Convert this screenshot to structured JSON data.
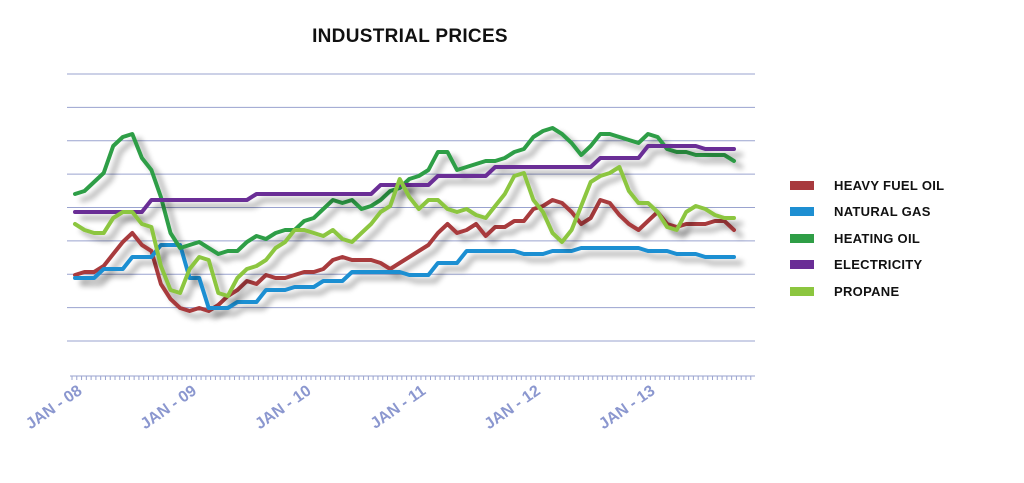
{
  "chart_data": {
    "type": "line",
    "title": "INDUSTRIAL PRICES",
    "xlabel": "",
    "ylabel": "",
    "x_tick_labels": [
      "JAN - 08",
      "JAN - 09",
      "JAN - 10",
      "JAN - 11",
      "JAN - 12",
      "JAN - 13"
    ],
    "x_start_month": "2008-01",
    "ylim": [
      0,
      10
    ],
    "y_gridlines": 9,
    "grid": true,
    "legend_position": "right",
    "series": [
      {
        "name": "HEAVY FUEL OIL",
        "color": "#a83a3e",
        "values": [
          3.3,
          3.4,
          3.4,
          3.6,
          4.0,
          4.4,
          4.7,
          4.3,
          4.1,
          3.0,
          2.5,
          2.2,
          2.1,
          2.2,
          2.1,
          2.3,
          2.6,
          2.8,
          3.1,
          3.0,
          3.3,
          3.2,
          3.2,
          3.3,
          3.4,
          3.4,
          3.5,
          3.8,
          3.9,
          3.8,
          3.8,
          3.8,
          3.7,
          3.5,
          3.7,
          3.9,
          4.1,
          4.3,
          4.7,
          5.0,
          4.7,
          4.8,
          5.0,
          4.6,
          4.9,
          4.9,
          5.1,
          5.1,
          5.5,
          5.6,
          5.8,
          5.7,
          5.4,
          5.0,
          5.2,
          5.8,
          5.7,
          5.3,
          5.0,
          4.8,
          5.1,
          5.4,
          5.0,
          4.9,
          5.0,
          5.0,
          5.0,
          5.1,
          5.1,
          4.8
        ]
      },
      {
        "name": "NATURAL GAS",
        "color": "#1e8fd2",
        "values": [
          3.2,
          3.2,
          3.2,
          3.5,
          3.5,
          3.5,
          3.9,
          3.9,
          3.9,
          4.3,
          4.3,
          4.3,
          3.2,
          3.2,
          2.2,
          2.2,
          2.2,
          2.4,
          2.4,
          2.4,
          2.8,
          2.8,
          2.8,
          2.9,
          2.9,
          2.9,
          3.1,
          3.1,
          3.1,
          3.4,
          3.4,
          3.4,
          3.4,
          3.4,
          3.4,
          3.3,
          3.3,
          3.3,
          3.7,
          3.7,
          3.7,
          4.1,
          4.1,
          4.1,
          4.1,
          4.1,
          4.1,
          4.0,
          4.0,
          4.0,
          4.1,
          4.1,
          4.1,
          4.2,
          4.2,
          4.2,
          4.2,
          4.2,
          4.2,
          4.2,
          4.1,
          4.1,
          4.1,
          4.0,
          4.0,
          4.0,
          3.9,
          3.9,
          3.9,
          3.9
        ]
      },
      {
        "name": "HEATING OIL",
        "color": "#2f9e46",
        "values": [
          6.0,
          6.1,
          6.4,
          6.7,
          7.6,
          7.9,
          8.0,
          7.2,
          6.8,
          5.9,
          4.7,
          4.2,
          4.3,
          4.4,
          4.2,
          4.0,
          4.1,
          4.1,
          4.4,
          4.6,
          4.5,
          4.7,
          4.8,
          4.8,
          5.1,
          5.2,
          5.5,
          5.8,
          5.7,
          5.8,
          5.5,
          5.6,
          5.8,
          6.1,
          6.2,
          6.5,
          6.6,
          6.8,
          7.4,
          7.4,
          6.8,
          6.9,
          7.0,
          7.1,
          7.1,
          7.2,
          7.4,
          7.5,
          7.9,
          8.1,
          8.2,
          8.0,
          7.7,
          7.3,
          7.6,
          8.0,
          8.0,
          7.9,
          7.8,
          7.7,
          8.0,
          7.9,
          7.5,
          7.4,
          7.4,
          7.3,
          7.3,
          7.3,
          7.3,
          7.1
        ]
      },
      {
        "name": "ELECTRICITY",
        "color": "#6a2d96",
        "values": [
          5.4,
          5.4,
          5.4,
          5.4,
          5.4,
          5.4,
          5.4,
          5.4,
          5.8,
          5.8,
          5.8,
          5.8,
          5.8,
          5.8,
          5.8,
          5.8,
          5.8,
          5.8,
          5.8,
          6.0,
          6.0,
          6.0,
          6.0,
          6.0,
          6.0,
          6.0,
          6.0,
          6.0,
          6.0,
          6.0,
          6.0,
          6.0,
          6.3,
          6.3,
          6.3,
          6.3,
          6.3,
          6.3,
          6.6,
          6.6,
          6.6,
          6.6,
          6.6,
          6.6,
          6.9,
          6.9,
          6.9,
          6.9,
          6.9,
          6.9,
          6.9,
          6.9,
          6.9,
          6.9,
          6.9,
          7.2,
          7.2,
          7.2,
          7.2,
          7.2,
          7.6,
          7.6,
          7.6,
          7.6,
          7.6,
          7.6,
          7.5,
          7.5,
          7.5,
          7.5
        ]
      },
      {
        "name": "PROPANE",
        "color": "#8cc63f",
        "values": [
          5.0,
          4.8,
          4.7,
          4.7,
          5.2,
          5.4,
          5.4,
          5.0,
          4.9,
          3.6,
          2.8,
          2.7,
          3.5,
          3.9,
          3.8,
          2.7,
          2.6,
          3.2,
          3.5,
          3.6,
          3.8,
          4.2,
          4.4,
          4.8,
          4.8,
          4.7,
          4.6,
          4.8,
          4.5,
          4.4,
          4.7,
          5.0,
          5.4,
          5.6,
          6.5,
          5.9,
          5.5,
          5.8,
          5.8,
          5.5,
          5.4,
          5.5,
          5.3,
          5.2,
          5.6,
          6.0,
          6.6,
          6.7,
          5.8,
          5.4,
          4.7,
          4.4,
          4.8,
          5.6,
          6.4,
          6.6,
          6.7,
          6.9,
          6.1,
          5.7,
          5.7,
          5.4,
          4.9,
          4.8,
          5.4,
          5.6,
          5.5,
          5.3,
          5.2,
          5.2
        ]
      }
    ]
  }
}
